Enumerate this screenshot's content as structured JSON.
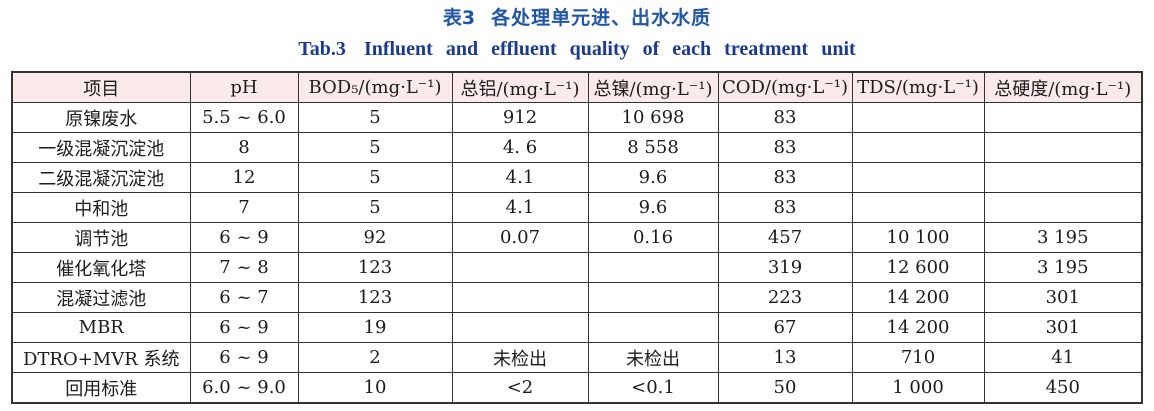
{
  "titles": {
    "cn_label": "表3",
    "cn_text": "各处理单元进、出水水质",
    "en_label": "Tab.3",
    "en_text": "Influent and effluent quality of each treatment unit"
  },
  "colors": {
    "title_cn_blue": "#2156a5",
    "title_en_blue": "#1a3a8e",
    "header_row_pink": "#fbeaea",
    "table_border": "#333333"
  },
  "table": {
    "columns": [
      "项目",
      "pH",
      "BOD₅/(mg·L⁻¹)",
      "总铝/(mg·L⁻¹)",
      "总镍/(mg·L⁻¹)",
      "COD/(mg·L⁻¹)",
      "TDS/(mg·L⁻¹)",
      "总硬度/(mg·L⁻¹)"
    ],
    "rows": [
      {
        "cells": [
          "原镍废水",
          "5.5 ~ 6.0",
          "5",
          "912",
          "10 698",
          "83",
          "",
          ""
        ]
      },
      {
        "cells": [
          "一级混凝沉淀池",
          "8",
          "5",
          "4. 6",
          "8 558",
          "83",
          "",
          ""
        ]
      },
      {
        "cells": [
          "二级混凝沉淀池",
          "12",
          "5",
          "4.1",
          "9.6",
          "83",
          "",
          ""
        ]
      },
      {
        "cells": [
          "中和池",
          "7",
          "5",
          "4.1",
          "9.6",
          "83",
          "",
          ""
        ]
      },
      {
        "cells": [
          "调节池",
          "6 ~ 9",
          "92",
          "0.07",
          "0.16",
          "457",
          "10 100",
          "3 195"
        ]
      },
      {
        "cells": [
          "催化氧化塔",
          "7 ~ 8",
          "123",
          "",
          "",
          "319",
          "12 600",
          "3 195"
        ]
      },
      {
        "cells": [
          "混凝过滤池",
          "6 ~ 7",
          "123",
          "",
          "",
          "223",
          "14 200",
          "301"
        ]
      },
      {
        "cells": [
          "MBR",
          "6 ~ 9",
          "19",
          "",
          "",
          "67",
          "14 200",
          "301"
        ]
      },
      {
        "cells": [
          "DTRO+MVR 系统",
          "6 ~ 9",
          "2",
          "未检出",
          "未检出",
          "13",
          "710",
          "41"
        ]
      },
      {
        "cells": [
          "回用标准",
          "6.0 ~ 9.0",
          "10",
          "<2",
          "<0.1",
          "50",
          "1 000",
          "450"
        ]
      }
    ]
  }
}
